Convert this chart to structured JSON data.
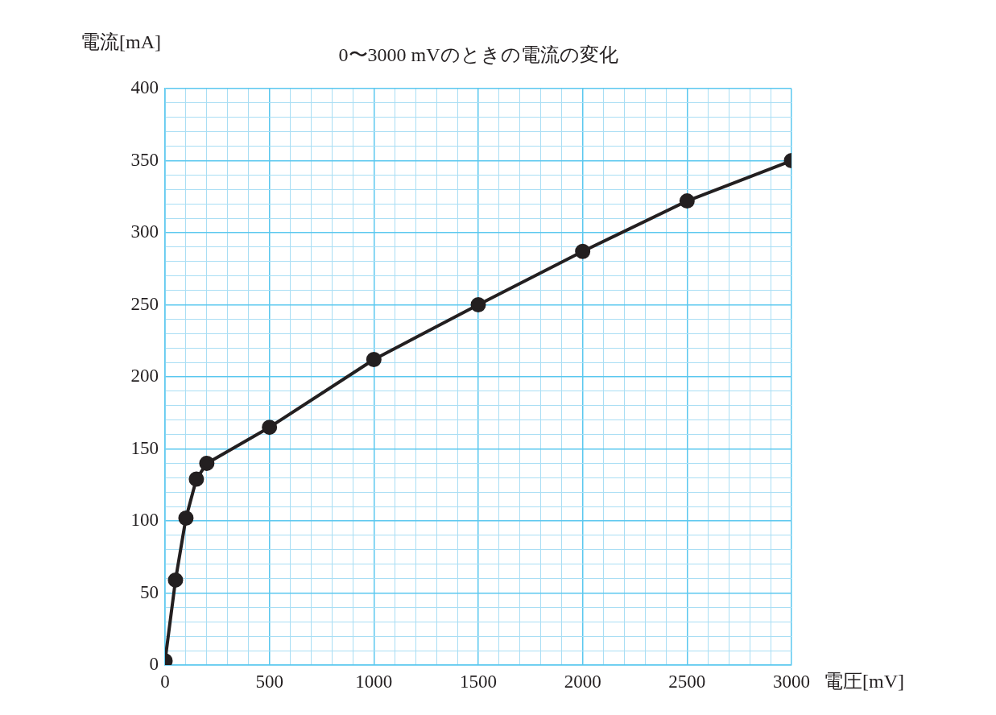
{
  "chart_data": {
    "type": "line",
    "title": "0〜3000 mVのときの電流の変化",
    "xlabel": "電圧[mV]",
    "ylabel": "電流[mA]",
    "x": [
      0,
      50,
      100,
      150,
      200,
      500,
      1000,
      1500,
      2000,
      2500,
      3000
    ],
    "series": [
      {
        "color": "#231f20",
        "values": [
          3,
          59,
          102,
          129,
          140,
          165,
          212,
          250,
          287,
          322,
          350
        ]
      }
    ],
    "xlim": [
      0,
      3000
    ],
    "xticks": [
      0,
      {
        "value": 100,
        "label": null
      },
      {
        "value": 200,
        "label": null
      },
      {
        "value": 300,
        "label": null
      },
      {
        "value": 400,
        "label": null
      },
      500,
      {
        "value": 600,
        "label": null
      },
      {
        "value": 700,
        "label": null
      },
      {
        "value": 800,
        "label": null
      },
      {
        "value": 900,
        "label": null
      },
      1000,
      {
        "value": 1100,
        "label": null
      },
      {
        "value": 1200,
        "label": null
      },
      {
        "value": 1300,
        "label": null
      },
      {
        "value": 1400,
        "label": null
      },
      1500,
      {
        "value": 1600,
        "label": null
      },
      {
        "value": 1700,
        "label": null
      },
      {
        "value": 1800,
        "label": null
      },
      {
        "value": 1900,
        "label": null
      },
      2000,
      {
        "value": 2100,
        "label": null
      },
      {
        "value": 2200,
        "label": null
      },
      {
        "value": 2300,
        "label": null
      },
      {
        "value": 2400,
        "label": null
      },
      2500,
      {
        "value": 2600,
        "label": null
      },
      {
        "value": 2700,
        "label": null
      },
      {
        "value": 2800,
        "label": null
      },
      {
        "value": 2900,
        "label": null
      },
      3000
    ],
    "ylim": [
      0,
      400
    ],
    "yticks": [
      0,
      {
        "value": 10,
        "label": null
      },
      {
        "value": 20,
        "label": null
      },
      {
        "value": 30,
        "label": null
      },
      {
        "value": 40,
        "label": null
      },
      50,
      {
        "value": 60,
        "label": null
      },
      {
        "value": 70,
        "label": null
      },
      {
        "value": 80,
        "label": null
      },
      {
        "value": 90,
        "label": null
      },
      100,
      {
        "value": 110,
        "label": null
      },
      {
        "value": 120,
        "label": null
      },
      {
        "value": 130,
        "label": null
      },
      {
        "value": 140,
        "label": null
      },
      150,
      {
        "value": 160,
        "label": null
      },
      {
        "value": 170,
        "label": null
      },
      {
        "value": 180,
        "label": null
      },
      {
        "value": 190,
        "label": null
      },
      200,
      {
        "value": 210,
        "label": null
      },
      {
        "value": 220,
        "label": null
      },
      {
        "value": 230,
        "label": null
      },
      {
        "value": 240,
        "label": null
      },
      250,
      {
        "value": 260,
        "label": null
      },
      {
        "value": 270,
        "label": null
      },
      {
        "value": 280,
        "label": null
      },
      {
        "value": 290,
        "label": null
      },
      300,
      {
        "value": 310,
        "label": null
      },
      {
        "value": 320,
        "label": null
      },
      {
        "value": 330,
        "label": null
      },
      {
        "value": 340,
        "label": null
      },
      350,
      {
        "value": 360,
        "label": null
      },
      {
        "value": 370,
        "label": null
      },
      {
        "value": 380,
        "label": null
      },
      {
        "value": 390,
        "label": null
      },
      400
    ],
    "grid": true,
    "legend": false,
    "marker": "circle",
    "line_style": "solid"
  }
}
